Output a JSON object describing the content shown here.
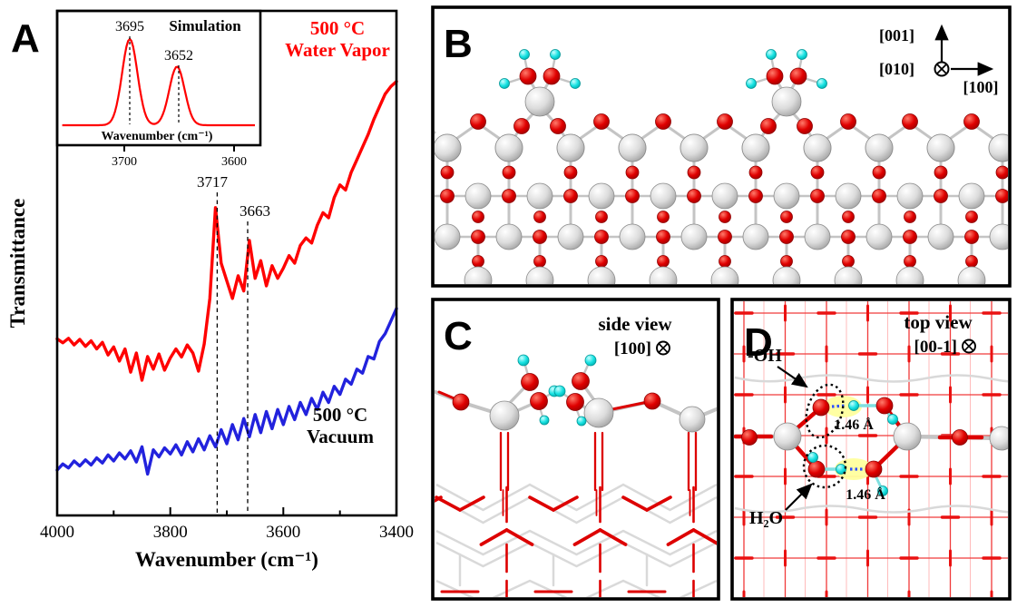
{
  "panelA": {
    "label": "A",
    "ylabel": "Transmittance",
    "xlabel": "Wavenumber (cm⁻¹)",
    "x_ticks": [
      "4000",
      "3800",
      "3600",
      "3400"
    ],
    "peaks": {
      "p1": "3717",
      "p2": "3663"
    },
    "red_label": [
      "500 °C",
      "Water Vapor"
    ],
    "blue_label": [
      "500 °C",
      "Vacuum"
    ],
    "inset": {
      "title": "Simulation",
      "peak1": "3695",
      "peak2": "3652",
      "xlabel": "Wavenumber (cm⁻¹)",
      "ticks": [
        "3700",
        "3600"
      ]
    }
  },
  "panelB": {
    "label": "B",
    "axes": {
      "up": "[001]",
      "into": "[010]",
      "right": "[100]"
    }
  },
  "panelC": {
    "label": "C",
    "view": "side view",
    "axis": "[100]"
  },
  "panelD": {
    "label": "D",
    "view": "top view",
    "axis": "[00-1]",
    "oh_label": "-OH",
    "h2o_label": "H₂O",
    "bond_length_1": "1.46 Å",
    "bond_length_2": "1.46 Å"
  },
  "colors": {
    "spectrum_red": "#ff0000",
    "spectrum_blue": "#2222dd",
    "oxygen": "#dd0000",
    "hydrogen": "#00dddd",
    "metal": "#d8d8d8",
    "bond_grey": "#c4c4c4",
    "highlight_yellow": "#ffff9e",
    "hbond_blue": "#2b4fff",
    "grid_red": "#f03a3a"
  },
  "chart_data": [
    {
      "id": "main_spectrum",
      "type": "line",
      "xlabel": "Wavenumber (cm⁻¹)",
      "ylabel": "Transmittance",
      "x_axis": {
        "start": 4000,
        "step": -10,
        "end": 3400,
        "reversed": true,
        "ticks": [
          4000,
          3800,
          3600,
          3400
        ]
      },
      "ylim": [
        0,
        100
      ],
      "grid": false,
      "annotations": {
        "dashed_lines_at": [
          3717,
          3663
        ]
      },
      "series": [
        {
          "name": "500 °C Water Vapor",
          "color": "#ff0000",
          "values": [
            35,
            34.2,
            35.1,
            33.8,
            34.9,
            33.5,
            34.6,
            33,
            34.3,
            31.8,
            33.4,
            30.6,
            33,
            28.4,
            32.2,
            26.8,
            31.5,
            29,
            32,
            28.8,
            31.2,
            33,
            31.4,
            33.8,
            32.2,
            28.6,
            34,
            43,
            61,
            50,
            46.5,
            43,
            47.5,
            44.5,
            54.5,
            47,
            50.5,
            45.5,
            49.5,
            47,
            49,
            51.5,
            50,
            53.5,
            55,
            54,
            57.5,
            60,
            59,
            63,
            65.5,
            64.5,
            68,
            70.5,
            73,
            75.5,
            78.5,
            81,
            83.5,
            85,
            86
          ]
        },
        {
          "name": "500 °C Vacuum",
          "color": "#2222dd",
          "values": [
            9,
            10.2,
            9.4,
            10.8,
            9.8,
            11,
            10,
            11.4,
            10.4,
            12,
            10.8,
            12.4,
            11.2,
            12.8,
            10.6,
            13.6,
            8.2,
            13,
            11.6,
            13.4,
            12.2,
            14,
            12,
            14.6,
            12.6,
            15.2,
            13,
            15.8,
            13.6,
            17,
            14.2,
            18,
            15,
            19.2,
            15.6,
            20,
            16.4,
            20.6,
            17.2,
            21,
            18,
            21.6,
            19,
            22.4,
            20,
            23.2,
            21,
            24.4,
            22.4,
            25.6,
            24,
            27,
            26,
            29,
            28.2,
            31.5,
            31,
            34.5,
            36,
            38.5,
            41
          ]
        }
      ]
    },
    {
      "id": "inset_simulation",
      "type": "line",
      "title": "Simulation",
      "xlabel": "Wavenumber (cm⁻¹)",
      "x_range": [
        3758,
        3580
      ],
      "ticks": [
        3700,
        3600
      ],
      "sigma": 7,
      "color": "#ff0000",
      "peaks": [
        {
          "center": 3695,
          "height": 1.0,
          "label": "3695"
        },
        {
          "center": 3652,
          "height": 0.68,
          "label": "3652"
        }
      ]
    }
  ]
}
